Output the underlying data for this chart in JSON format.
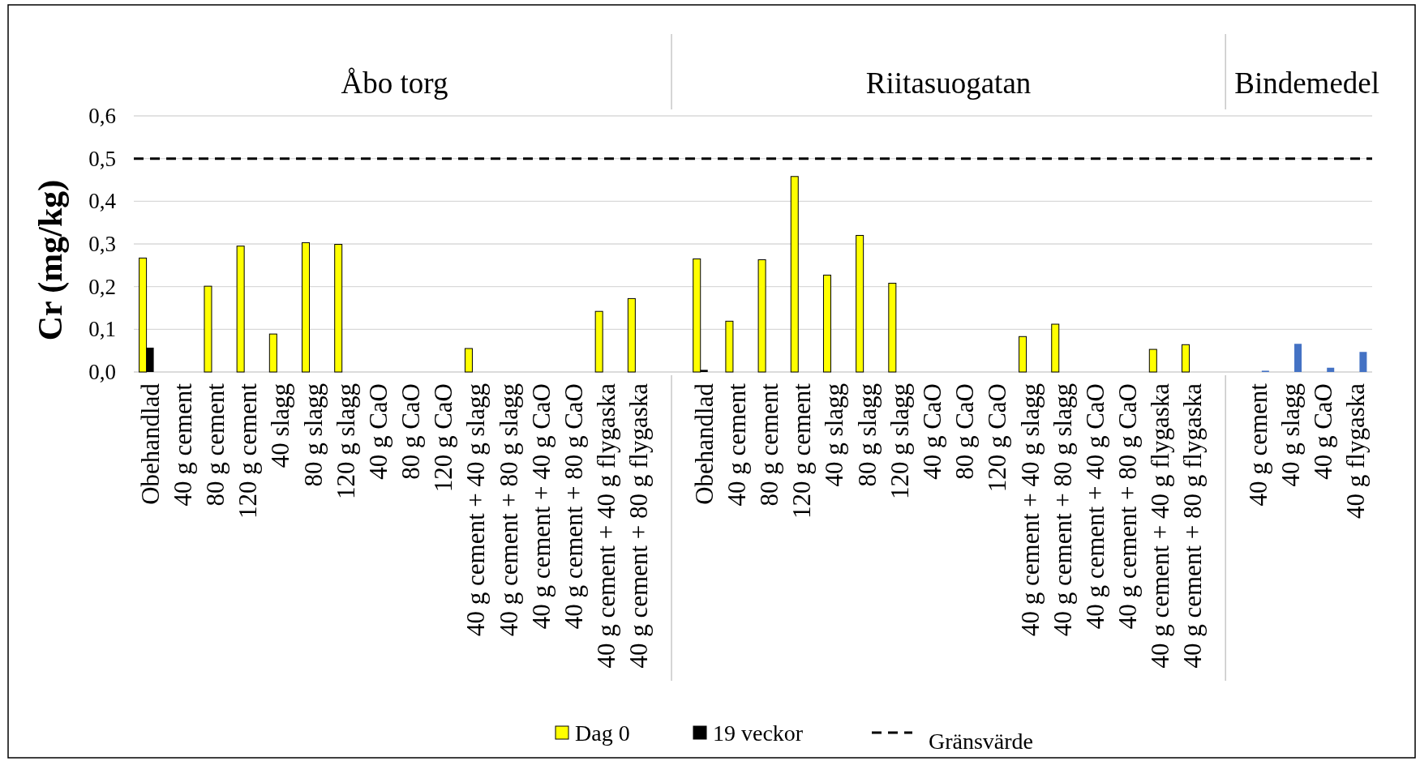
{
  "chart_data": {
    "type": "bar",
    "ylabel": "Cr (mg/kg)",
    "categories": [
      "Obehandlad",
      "40 g cement",
      "80 g cement",
      "120 g cement",
      "40 slagg",
      "80 g slagg",
      "120 g slagg",
      "40 g CaO",
      "80 g CaO",
      "120 g CaO",
      "40 g cement + 40 g slagg",
      "40 g cement + 80 g slagg",
      "40 g cement + 40 g CaO",
      "40 g cement + 80 g CaO",
      "40 g cement + 40 g flygaska",
      "40 g cement + 80 g flygaska",
      null,
      "Obehandlad",
      "40 g cement",
      "80 g cement",
      "120 g cement",
      "40 g slagg",
      "80 g slagg",
      "120 g slagg",
      "40 g CaO",
      "80 g CaO",
      "120 g CaO",
      "40 g cement + 40 g slagg",
      "40 g cement + 80 g slagg",
      "40 g cement + 40 g CaO",
      "40 g cement + 80 g CaO",
      "40 g cement + 40 g flygaska",
      "40 g cement + 80 g flygaska",
      null,
      "40 g cement",
      "40 g slagg",
      "40 g CaO",
      "40 g flygaska"
    ],
    "series": [
      {
        "name": "Dag 0",
        "color": "#ffff00",
        "values": [
          0.267,
          null,
          0.201,
          0.295,
          0.089,
          0.303,
          0.299,
          null,
          null,
          null,
          0.055,
          null,
          null,
          null,
          0.142,
          0.172,
          null,
          0.265,
          0.119,
          0.263,
          0.458,
          0.227,
          0.32,
          0.208,
          null,
          null,
          null,
          0.083,
          0.112,
          null,
          null,
          0.053,
          0.064,
          null,
          null,
          null,
          null,
          null
        ]
      },
      {
        "name": "19 veckor",
        "color": "#000000",
        "values": [
          0.057,
          null,
          null,
          null,
          null,
          null,
          null,
          null,
          null,
          null,
          null,
          null,
          null,
          null,
          null,
          null,
          null,
          0.005,
          null,
          null,
          null,
          null,
          null,
          null,
          null,
          null,
          null,
          null,
          null,
          null,
          null,
          null,
          null,
          null,
          null,
          null,
          null,
          null
        ]
      },
      {
        "color": "#4472c4",
        "values": [
          null,
          null,
          null,
          null,
          null,
          null,
          null,
          null,
          null,
          null,
          null,
          null,
          null,
          null,
          null,
          null,
          null,
          null,
          null,
          null,
          null,
          null,
          null,
          null,
          null,
          null,
          null,
          null,
          null,
          null,
          null,
          null,
          null,
          null,
          0.003,
          0.066,
          0.01,
          0.047
        ]
      }
    ],
    "ylim": [
      0,
      0.6
    ],
    "yticks": [
      {
        "value": 0,
        "label": "0,0"
      },
      {
        "value": 0.1,
        "label": "0,1"
      },
      {
        "value": 0.2,
        "label": "0,2"
      },
      {
        "value": 0.3,
        "label": "0,3"
      },
      {
        "value": 0.4,
        "label": "0,4"
      },
      {
        "value": 0.5,
        "label": "0,5"
      },
      {
        "value": 0.6,
        "label": "0,6"
      }
    ],
    "ref_lines": [
      {
        "axis": "y",
        "value": 0.5,
        "label": "Gränsvärde",
        "color": "#000000",
        "line_style": "dashed"
      }
    ],
    "annotations": [
      "Åbo torg",
      "Riitasuogatan",
      "Bindemedel"
    ],
    "grid": "y",
    "legend": "bottom"
  }
}
